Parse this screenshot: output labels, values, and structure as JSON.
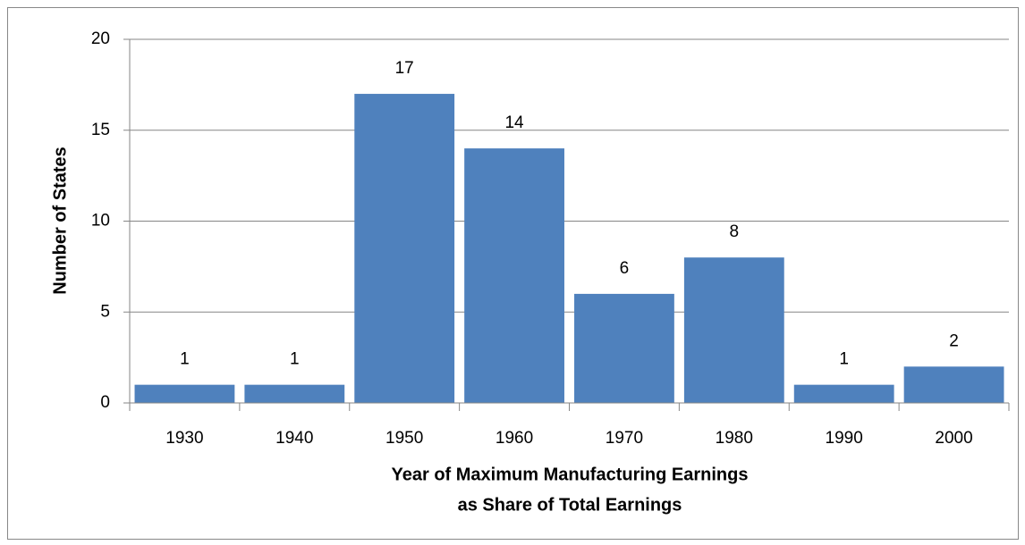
{
  "chart_data": {
    "type": "bar",
    "categories": [
      "1930",
      "1940",
      "1950",
      "1960",
      "1970",
      "1980",
      "1990",
      "2000"
    ],
    "values": [
      1,
      1,
      17,
      14,
      6,
      8,
      1,
      2
    ],
    "color": "#4f81bd",
    "ylim": [
      0,
      20
    ],
    "yticks": [
      0,
      5,
      10,
      15,
      20
    ],
    "grid": true,
    "ylabel": "Number of States",
    "xlabel": [
      "Year of Maximum Manufacturing Earnings",
      "as Share of Total Earnings"
    ]
  }
}
